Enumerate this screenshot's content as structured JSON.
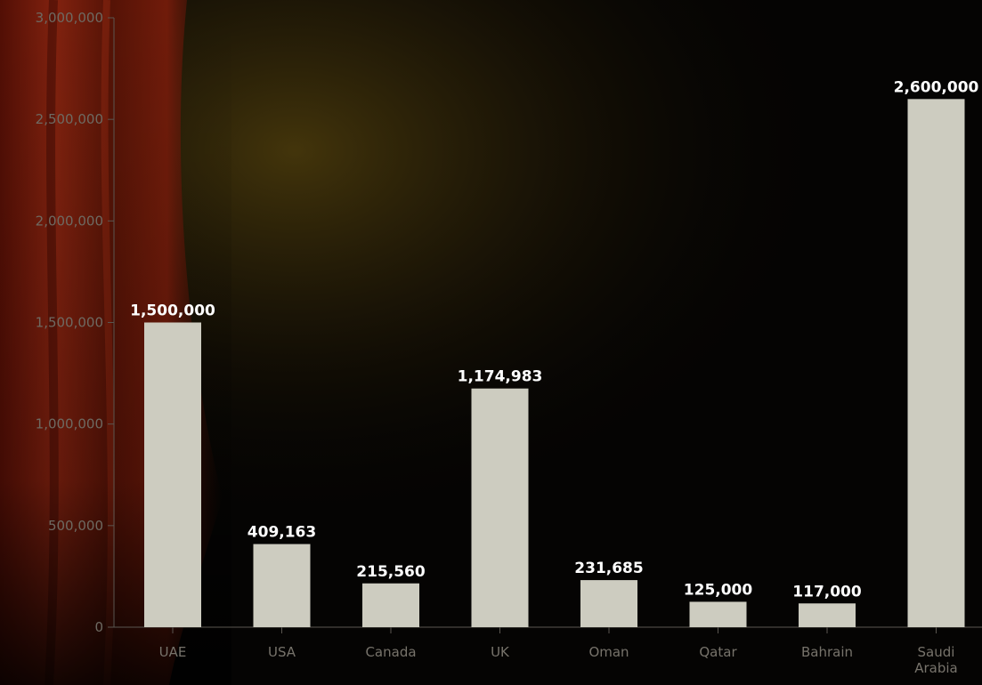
{
  "chart_data": {
    "type": "bar",
    "title": "",
    "xlabel": "",
    "ylabel": "",
    "categories": [
      "UAE",
      "USA",
      "Canada",
      "UK",
      "Oman",
      "Qatar",
      "Bahrain",
      "Saudi Arabia"
    ],
    "values": [
      1500000,
      409163,
      215560,
      1174983,
      231685,
      125000,
      117000,
      2600000
    ],
    "value_labels": [
      "1,500,000",
      "409,163",
      "215,560",
      "1,174,983",
      "231,685",
      "125,000",
      "117,000",
      "2,600,000"
    ],
    "ylim": [
      0,
      3000000
    ],
    "yticks": [
      0,
      500000,
      1000000,
      1500000,
      2000000,
      2500000,
      3000000
    ],
    "ytick_labels": [
      "0",
      "500,000",
      "1,000,000",
      "1,500,000",
      "2,000,000",
      "2,500,000",
      "3,000,000"
    ],
    "grid": false,
    "legend": "none",
    "colors": {
      "bar": "#cdccc0",
      "axis": "#5a5650",
      "tick_text": "#6e6a62",
      "value_text": "#ffffff"
    }
  }
}
